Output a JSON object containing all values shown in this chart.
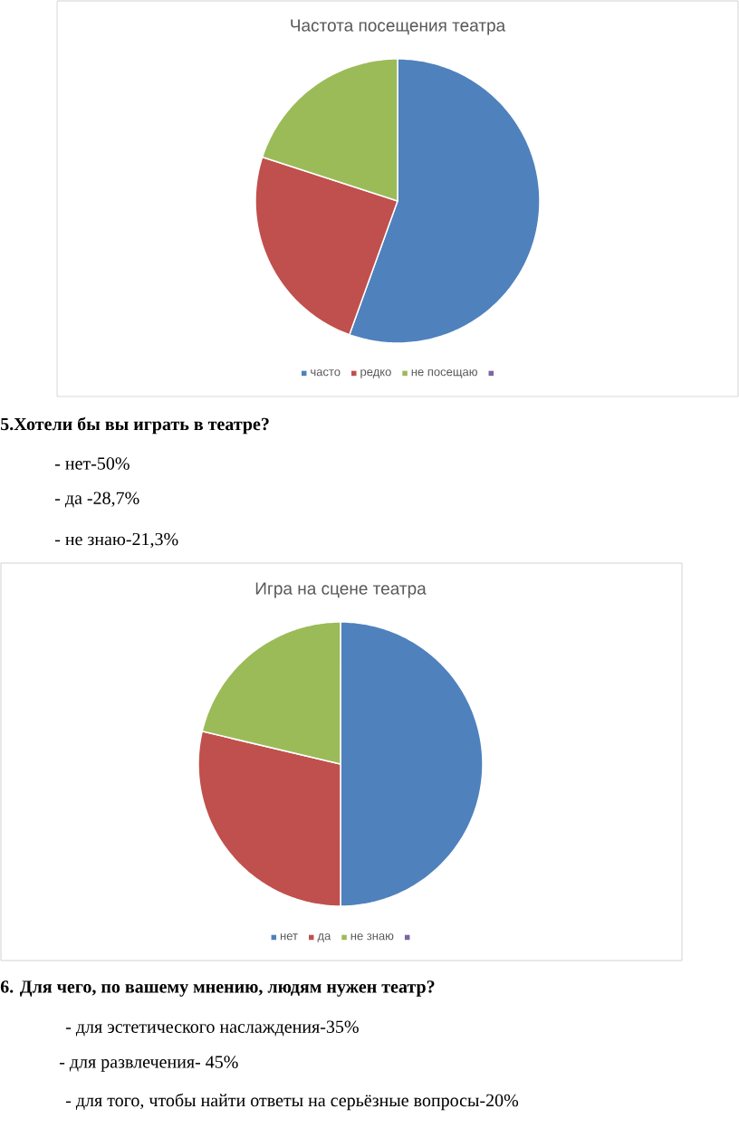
{
  "chart_data": [
    {
      "type": "pie",
      "title": "Частота посещения театра",
      "categories": [
        "часто",
        "редко",
        "не посещаю",
        null
      ],
      "values": [
        55.5,
        24.5,
        20,
        0
      ],
      "colors": [
        "#4f81bd",
        "#c0504d",
        "#9bbb59",
        "#8064a2"
      ],
      "legend": "bottom",
      "annotations": [
        "5.Хотели бы вы играть в театре?",
        "- нет-50%",
        "-  да -28,7%",
        "- не знаю-21,3%"
      ]
    },
    {
      "type": "pie",
      "title": "Игра на сцене театра",
      "categories": [
        "нет",
        "да",
        "не знаю",
        null
      ],
      "values": [
        50,
        28.7,
        21.3,
        0
      ],
      "colors": [
        "#4f81bd",
        "#c0504d",
        "#9bbb59",
        "#8064a2"
      ],
      "legend": "bottom",
      "annotations": [
        "6. Для чего, по вашему мнению, людям нужен театр?",
        "- для эстетического наслаждения-35%",
        "- для развлечения- 45%",
        "- для того, чтобы найти ответы на серьёзные вопросы-20%"
      ]
    }
  ]
}
